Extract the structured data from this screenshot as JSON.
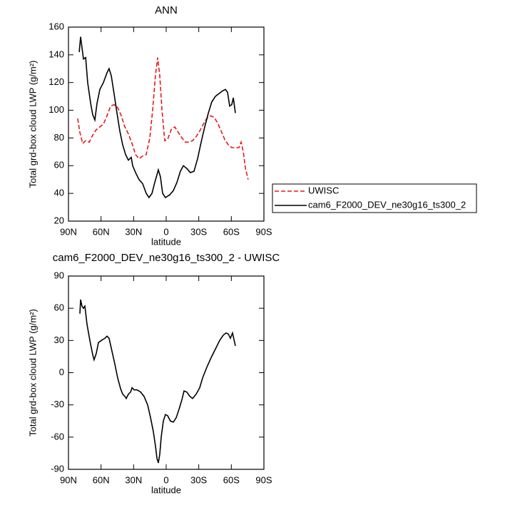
{
  "chart_data": [
    {
      "type": "line",
      "title": "ANN",
      "xlabel": "latitude",
      "ylabel": "Total grd-box cloud LWP (g/m²)",
      "xlim": [
        90,
        -90
      ],
      "xticks": [
        {
          "value": 90,
          "label": "90N"
        },
        {
          "value": 60,
          "label": "60N"
        },
        {
          "value": 30,
          "label": "30N"
        },
        0,
        {
          "value": -30,
          "label": "30S"
        },
        {
          "value": -60,
          "label": "60S"
        },
        {
          "value": -90,
          "label": "90S"
        }
      ],
      "ylim": [
        20,
        160
      ],
      "yticks": [
        20,
        40,
        60,
        80,
        100,
        120,
        140,
        160
      ],
      "legend": "right",
      "series": [
        {
          "name": "UWISC",
          "color": "#e41a1c",
          "dashed": true,
          "x": [
            81.5,
            79.5,
            76.9,
            74.2,
            70.9,
            67.7,
            64.4,
            61.1,
            57.8,
            54.5,
            51.2,
            48,
            44.7,
            41.4,
            38.1,
            34.8,
            31.5,
            28.2,
            25,
            21.7,
            18.4,
            15.1,
            12.5,
            9.9,
            7.9,
            5.9,
            3.9,
            1.3,
            -1.3,
            -4.6,
            -7.9,
            -11.2,
            -14.5,
            -17.7,
            -21,
            -24.3,
            -27.6,
            -30.9,
            -34.2,
            -37.4,
            -40.7,
            -44,
            -47.3,
            -50.6,
            -53.9,
            -57.2,
            -60.4,
            -63.7,
            -67,
            -69,
            -71,
            -73,
            -75.5
          ],
          "values": [
            94,
            84,
            76,
            78,
            77,
            82,
            86,
            88,
            90,
            96,
            103,
            104,
            102,
            96,
            88,
            83,
            76,
            68,
            65,
            67,
            68,
            80,
            100,
            125,
            138,
            125,
            100,
            78,
            79,
            86,
            88,
            84,
            80,
            77,
            77,
            78,
            81,
            85,
            90,
            94,
            96,
            95,
            91,
            85,
            79,
            75,
            73,
            73,
            73,
            77,
            70,
            58,
            50
          ]
        },
        {
          "name": "cam6_F2000_DEV_ne30g16_ts300_2",
          "color": "#000000",
          "dashed": false,
          "x": [
            80.1,
            78.8,
            76.2,
            74.2,
            72.3,
            69.6,
            67.7,
            65.7,
            63.7,
            61.1,
            57.8,
            54.5,
            52.6,
            50.6,
            48,
            45.3,
            42.7,
            40.1,
            37.4,
            34.8,
            32.2,
            30.9,
            28.2,
            25,
            21.7,
            18.4,
            15.8,
            13.1,
            10.5,
            7.2,
            5.3,
            3.3,
            0.7,
            -3.3,
            -6.6,
            -9.9,
            -13.1,
            -15.8,
            -19,
            -22.3,
            -25.6,
            -28.9,
            -32.2,
            -35.5,
            -38.8,
            -42,
            -45.3,
            -48.6,
            -51.9,
            -54.5,
            -56.5,
            -58.5,
            -60.4,
            -61.8,
            -63.7
          ],
          "values": [
            142,
            153,
            137,
            138,
            120,
            105,
            97,
            93,
            105,
            115,
            120,
            127,
            130,
            125,
            112,
            98,
            85,
            75,
            68,
            64,
            66,
            60,
            55,
            50,
            47,
            40,
            37,
            40,
            48,
            57,
            52,
            40,
            37,
            39,
            42,
            48,
            56,
            60,
            58,
            55,
            56,
            65,
            77,
            88,
            98,
            106,
            110,
            112,
            114,
            115,
            113,
            103,
            104,
            109,
            98
          ]
        }
      ]
    },
    {
      "type": "line",
      "title": "cam6_F2000_DEV_ne30g16_ts300_2 - UWISC",
      "xlabel": "latitude",
      "ylabel": "Total grd-box cloud LWP (g/m²)",
      "xlim": [
        90,
        -90
      ],
      "xticks": [
        {
          "value": 90,
          "label": "90N"
        },
        {
          "value": 60,
          "label": "60N"
        },
        {
          "value": 30,
          "label": "30N"
        },
        0,
        {
          "value": -30,
          "label": "30S"
        },
        {
          "value": -60,
          "label": "60S"
        },
        {
          "value": -90,
          "label": "90S"
        }
      ],
      "ylim": [
        -90,
        90
      ],
      "yticks": [
        -90,
        -60,
        -30,
        0,
        30,
        60,
        90
      ],
      "series": [
        {
          "color": "#000000",
          "dashed": false,
          "x": [
            79.5,
            78.8,
            77.6,
            76.2,
            74.9,
            72.9,
            70.3,
            67.7,
            66.4,
            64.4,
            62.4,
            59.8,
            56.5,
            54.5,
            52.6,
            49.9,
            47.3,
            44.7,
            42,
            40.1,
            38.1,
            36.8,
            34.8,
            32.8,
            31.5,
            29.5,
            26.9,
            23.6,
            20.4,
            17.1,
            14.4,
            11.8,
            9.9,
            8.5,
            7.2,
            5.9,
            4.6,
            2.6,
            0.7,
            -1.3,
            -3.9,
            -6.6,
            -9.2,
            -11.8,
            -14.5,
            -16.4,
            -19,
            -21.7,
            -24.3,
            -27.6,
            -30.9,
            -33.5,
            -37.4,
            -41.4,
            -45.3,
            -49.3,
            -52.6,
            -55.2,
            -57.2,
            -59.1,
            -61.1,
            -63.7
          ],
          "values": [
            55,
            68,
            62,
            60,
            62,
            45,
            30,
            17,
            12,
            18,
            28,
            30,
            32,
            34,
            32,
            20,
            8,
            -5,
            -15,
            -20,
            -22,
            -24,
            -20,
            -18,
            -14,
            -16,
            -16,
            -18,
            -22,
            -30,
            -42,
            -55,
            -68,
            -80,
            -84,
            -76,
            -60,
            -45,
            -39,
            -40,
            -45,
            -46,
            -42,
            -34,
            -25,
            -17,
            -18,
            -22,
            -24,
            -20,
            -14,
            -5,
            5,
            14,
            22,
            30,
            35,
            37,
            36,
            32,
            37,
            25
          ]
        }
      ]
    }
  ]
}
